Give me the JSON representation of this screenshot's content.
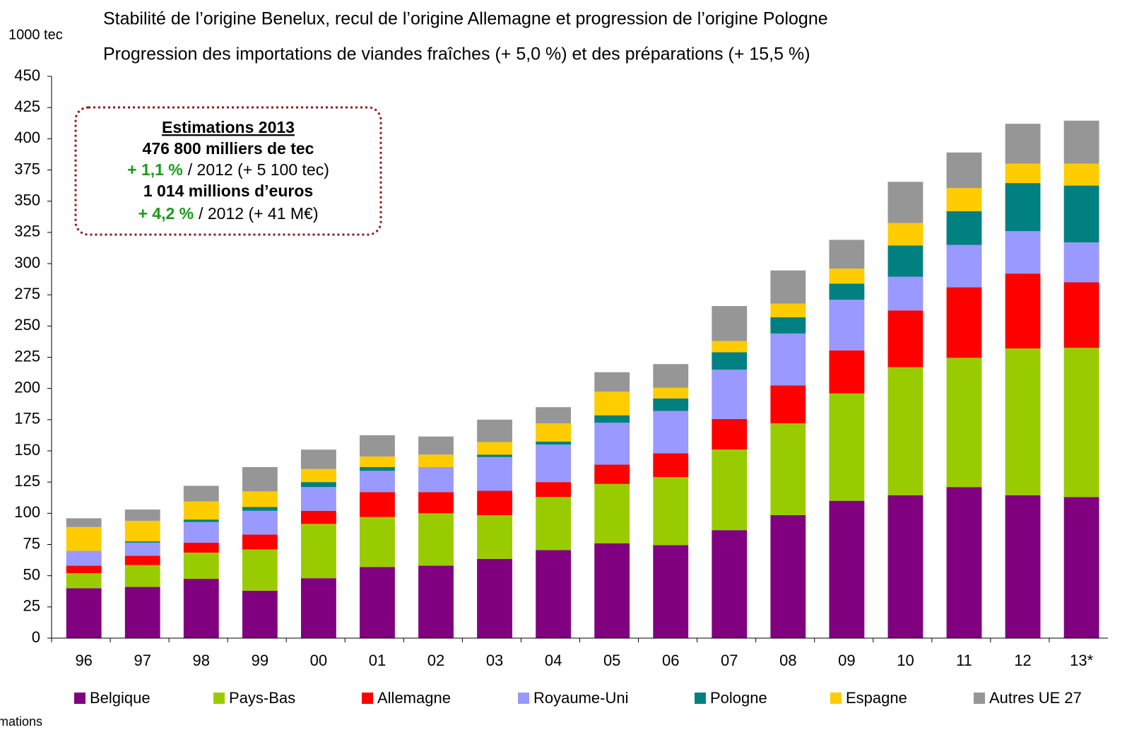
{
  "chart_data": {
    "type": "stacked_bar",
    "title": "Stabilité de l’origine Benelux, recul de l’origine Allemagne et progression de l’origine Pologne",
    "subtitle": "Progression des importations de viandes fraîches (+ 5,0 %) et des préparations (+ 15,5 %)",
    "y_label": "1000 tec",
    "footnote": "* Estimations",
    "annotation": {
      "heading": "Estimations 2013",
      "volume": "476 800 milliers de tec",
      "volume_change": "+ 1,1 %",
      "volume_detail": "/ 2012 (+ 5 100 tec)",
      "value": "1 014 millions d’euros",
      "value_change": "+ 4,2 %",
      "value_detail": "/ 2012 (+ 41 M€)"
    },
    "categories": [
      "96",
      "97",
      "98",
      "99",
      "00",
      "01",
      "02",
      "03",
      "04",
      "05",
      "06",
      "07",
      "08",
      "09",
      "10",
      "11",
      "12",
      "13*"
    ],
    "series": [
      {
        "name": "Belgique",
        "color": "#800080",
        "values": [
          40,
          41,
          47.5,
          38,
          48,
          57,
          58,
          63.5,
          70.5,
          76,
          74.5,
          86.5,
          98.5,
          110,
          114.5,
          121,
          114.5,
          113
        ]
      },
      {
        "name": "Pays-Bas",
        "color": "#99cc00",
        "values": [
          12,
          17.5,
          21,
          33,
          43.5,
          40,
          42,
          35,
          42.5,
          47.5,
          54.5,
          64.5,
          73.5,
          86,
          102.5,
          103.5,
          117.5,
          119.5
        ]
      },
      {
        "name": "Allemagne",
        "color": "#ff0000",
        "values": [
          6,
          7.5,
          8,
          12,
          10.5,
          20,
          17,
          19.5,
          12,
          15.5,
          19,
          24.5,
          30.5,
          34.5,
          45.5,
          56.5,
          60,
          52.5
        ]
      },
      {
        "name": "Royaume-Uni",
        "color": "#9999ff",
        "values": [
          12,
          10.5,
          16.5,
          19,
          19,
          17,
          20,
          27,
          30,
          33.5,
          34,
          39.5,
          41.5,
          40.5,
          27,
          34,
          34,
          32
        ]
      },
      {
        "name": "Pologne",
        "color": "#008080",
        "values": [
          0,
          1,
          2,
          3,
          4,
          3,
          0,
          2,
          2.5,
          6,
          10,
          14,
          13,
          13,
          25,
          27,
          38.5,
          45.5
        ]
      },
      {
        "name": "Espagne",
        "color": "#ffcc00",
        "values": [
          19,
          16.5,
          14.5,
          12.5,
          10.5,
          8.5,
          10,
          10,
          14.5,
          19,
          8.5,
          9,
          11,
          12,
          18,
          18.5,
          15.5,
          17.5
        ]
      },
      {
        "name": "Autres UE 27",
        "color": "#969696",
        "values": [
          7,
          9,
          12.5,
          19.5,
          15.5,
          17,
          14.5,
          18,
          13,
          15.5,
          19,
          28,
          26.5,
          23,
          33,
          28.5,
          32,
          34.5
        ]
      }
    ],
    "ylim": [
      0,
      450
    ],
    "yticks": [
      0,
      25,
      50,
      75,
      100,
      125,
      150,
      175,
      200,
      225,
      250,
      275,
      300,
      325,
      350,
      375,
      400,
      425,
      450
    ],
    "grid": false
  }
}
